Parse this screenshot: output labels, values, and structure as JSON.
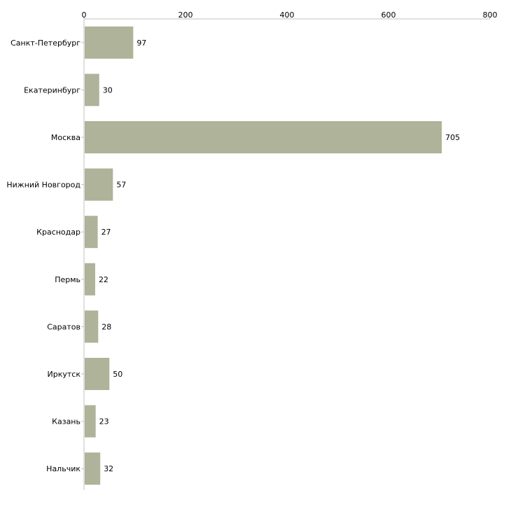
{
  "chart_data": {
    "type": "bar",
    "orientation": "horizontal",
    "title": "",
    "xlabel": "",
    "ylabel": "",
    "categories": [
      "Санкт-Петербург",
      "Екатеринбург",
      "Москва",
      "Нижний Новгород",
      "Краснодар",
      "Пермь",
      "Саратов",
      "Иркутск",
      "Казань",
      "Нальчик"
    ],
    "values": [
      97,
      30,
      705,
      57,
      27,
      22,
      28,
      50,
      23,
      32
    ],
    "value_labels": [
      "97",
      "30",
      "705",
      "57",
      "27",
      "22",
      "28",
      "50",
      "23",
      "32"
    ],
    "xlim": [
      0,
      800
    ],
    "x_ticks": [
      0,
      200,
      400,
      600,
      800
    ],
    "x_tick_labels": [
      "0",
      "200",
      "400",
      "600",
      "800"
    ],
    "x_axis_position": "top",
    "grid": false,
    "legend": "none",
    "bar_color": "#aeb399",
    "axis_color": "#c0c0c0"
  }
}
